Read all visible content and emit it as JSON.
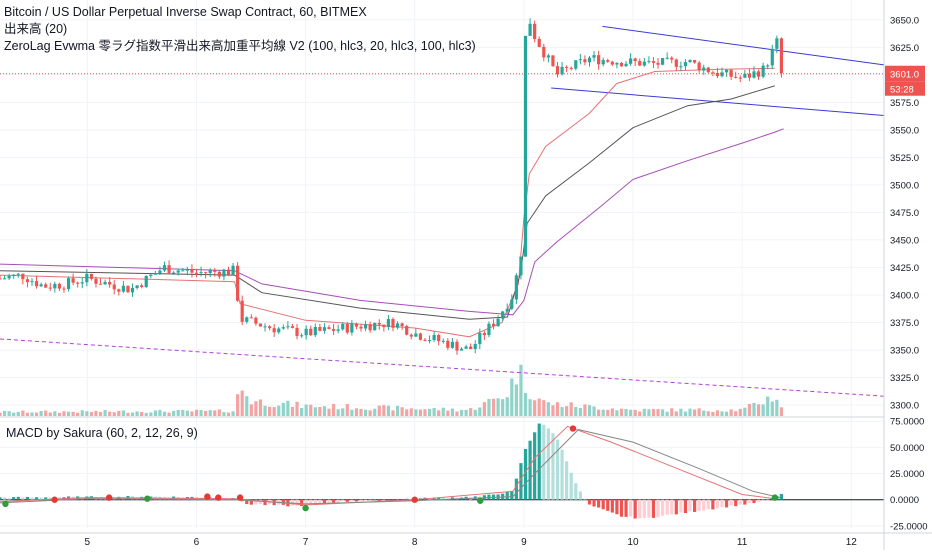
{
  "header": {
    "symbol_line": "Bitcoin / US Dollar Perpetual Inverse Swap Contract, 60, BITMEX",
    "volume_line": "出来高 (20)",
    "indicator_line": "ZeroLag Evwma 零ラグ指数平滑出来高加重平均線 V2 (100, hlc3, 20, hlc3, 100, hlc3)"
  },
  "macd_title": "MACD by Sakura (60, 2, 12, 26, 9)",
  "colors": {
    "up": "#26a69a",
    "down": "#ef5350",
    "vol_up": "#8fd3c9",
    "vol_down": "#f4a3a3",
    "channel": "#3b3bd6",
    "dashed_line": "#b142d8",
    "ma_fast": "#e57373",
    "ma_mid": "#555555",
    "ma_slow": "#a54fb8",
    "price_label_bg": "#ef5350",
    "grid": "#f0f3fa"
  },
  "chart_data": [
    {
      "type": "candlestick",
      "title": "Bitcoin / US Dollar Perpetual Inverse Swap Contract, 60, BITMEX",
      "x_tick_labels": [
        "5",
        "6",
        "7",
        "8",
        "9",
        "10",
        "11",
        "12"
      ],
      "y_tick_labels": [
        "3650.0",
        "3625.0",
        "3600.0",
        "3575.0",
        "3550.0",
        "3525.0",
        "3500.0",
        "3475.0",
        "3450.0",
        "3425.0",
        "3400.0",
        "3375.0",
        "3350.0",
        "3325.0",
        "3300.0"
      ],
      "ylim": [
        3290,
        3668
      ],
      "x_range_days": [
        4.2,
        12.3
      ],
      "last_price_label": "3601.0",
      "countdown_label": "53:28",
      "key_price_path": [
        {
          "day": 4.2,
          "price": 3415
        },
        {
          "day": 4.4,
          "price": 3418
        },
        {
          "day": 4.6,
          "price": 3408
        },
        {
          "day": 4.8,
          "price": 3410
        },
        {
          "day": 5.0,
          "price": 3415
        },
        {
          "day": 5.4,
          "price": 3405
        },
        {
          "day": 5.7,
          "price": 3425
        },
        {
          "day": 6.0,
          "price": 3420
        },
        {
          "day": 6.35,
          "price": 3422
        },
        {
          "day": 6.4,
          "price": 3378
        },
        {
          "day": 6.7,
          "price": 3370
        },
        {
          "day": 7.0,
          "price": 3365
        },
        {
          "day": 7.5,
          "price": 3372
        },
        {
          "day": 7.8,
          "price": 3375
        },
        {
          "day": 8.0,
          "price": 3365
        },
        {
          "day": 8.5,
          "price": 3350
        },
        {
          "day": 8.75,
          "price": 3378
        },
        {
          "day": 8.9,
          "price": 3400
        },
        {
          "day": 8.98,
          "price": 3442
        },
        {
          "day": 9.02,
          "price": 3660
        },
        {
          "day": 9.1,
          "price": 3635
        },
        {
          "day": 9.3,
          "price": 3600
        },
        {
          "day": 9.6,
          "price": 3615
        },
        {
          "day": 9.9,
          "price": 3612
        },
        {
          "day": 10.2,
          "price": 3610
        },
        {
          "day": 10.5,
          "price": 3612
        },
        {
          "day": 10.75,
          "price": 3602
        },
        {
          "day": 11.0,
          "price": 3597
        },
        {
          "day": 11.2,
          "price": 3605
        },
        {
          "day": 11.32,
          "price": 3630
        },
        {
          "day": 11.36,
          "price": 3601
        }
      ],
      "moving_averages": [
        {
          "key": "ma_fast",
          "points": [
            {
              "day": 4.2,
              "price": 3418
            },
            {
              "day": 6.35,
              "price": 3412
            },
            {
              "day": 6.4,
              "price": 3392
            },
            {
              "day": 7.0,
              "price": 3377
            },
            {
              "day": 8.0,
              "price": 3370
            },
            {
              "day": 8.5,
              "price": 3362
            },
            {
              "day": 8.8,
              "price": 3375
            },
            {
              "day": 8.95,
              "price": 3410
            },
            {
              "day": 9.0,
              "price": 3470
            },
            {
              "day": 9.05,
              "price": 3510
            },
            {
              "day": 9.2,
              "price": 3535
            },
            {
              "day": 9.6,
              "price": 3565
            },
            {
              "day": 9.85,
              "price": 3592
            },
            {
              "day": 10.2,
              "price": 3603
            },
            {
              "day": 10.8,
              "price": 3605
            },
            {
              "day": 11.3,
              "price": 3606
            }
          ]
        },
        {
          "key": "ma_mid",
          "points": [
            {
              "day": 4.2,
              "price": 3422
            },
            {
              "day": 6.35,
              "price": 3418
            },
            {
              "day": 6.6,
              "price": 3402
            },
            {
              "day": 7.5,
              "price": 3388
            },
            {
              "day": 8.5,
              "price": 3378
            },
            {
              "day": 8.85,
              "price": 3380
            },
            {
              "day": 8.97,
              "price": 3420
            },
            {
              "day": 9.03,
              "price": 3465
            },
            {
              "day": 9.2,
              "price": 3490
            },
            {
              "day": 9.6,
              "price": 3520
            },
            {
              "day": 10.0,
              "price": 3552
            },
            {
              "day": 10.5,
              "price": 3572
            },
            {
              "day": 10.9,
              "price": 3578
            },
            {
              "day": 11.3,
              "price": 3590
            }
          ]
        },
        {
          "key": "ma_slow",
          "points": [
            {
              "day": 4.2,
              "price": 3428
            },
            {
              "day": 6.35,
              "price": 3422
            },
            {
              "day": 6.6,
              "price": 3410
            },
            {
              "day": 7.5,
              "price": 3395
            },
            {
              "day": 8.5,
              "price": 3385
            },
            {
              "day": 8.9,
              "price": 3382
            },
            {
              "day": 9.0,
              "price": 3395
            },
            {
              "day": 9.1,
              "price": 3430
            },
            {
              "day": 9.3,
              "price": 3448
            },
            {
              "day": 9.7,
              "price": 3480
            },
            {
              "day": 10.0,
              "price": 3505
            },
            {
              "day": 10.5,
              "price": 3522
            },
            {
              "day": 11.0,
              "price": 3538
            },
            {
              "day": 11.3,
              "price": 3548
            },
            {
              "day": 11.38,
              "price": 3551
            }
          ]
        }
      ],
      "trend_lines": [
        {
          "key": "channel_top",
          "from": {
            "day": 9.72,
            "price": 3644
          },
          "to": {
            "day": 12.3,
            "price": 3609
          }
        },
        {
          "key": "channel_bottom",
          "from": {
            "day": 9.25,
            "price": 3588
          },
          "to": {
            "day": 12.3,
            "price": 3563
          }
        },
        {
          "key": "dashed_support",
          "from": {
            "day": 4.2,
            "price": 3360
          },
          "to": {
            "day": 12.3,
            "price": 3308
          }
        }
      ]
    },
    {
      "type": "bar",
      "title": "出来高 (20)",
      "series": [
        {
          "name": "出来高 (20)",
          "values": "relative bar heights per candle"
        }
      ],
      "volume_profile": [
        {
          "day": 4.2,
          "rel": 0.08
        },
        {
          "day": 6.35,
          "rel": 0.1
        },
        {
          "day": 6.4,
          "rel": 0.6
        },
        {
          "day": 6.5,
          "rel": 0.3
        },
        {
          "day": 7.0,
          "rel": 0.2
        },
        {
          "day": 8.5,
          "rel": 0.12
        },
        {
          "day": 8.7,
          "rel": 0.3
        },
        {
          "day": 8.85,
          "rel": 0.45
        },
        {
          "day": 8.95,
          "rel": 0.95
        },
        {
          "day": 9.02,
          "rel": 0.55
        },
        {
          "day": 9.2,
          "rel": 0.25
        },
        {
          "day": 10.0,
          "rel": 0.12
        },
        {
          "day": 11.0,
          "rel": 0.12
        },
        {
          "day": 11.3,
          "rel": 0.4
        },
        {
          "day": 11.36,
          "rel": 0.2
        }
      ]
    },
    {
      "type": "bar",
      "title": "MACD by Sakura (60, 2, 12, 26, 9)",
      "y_tick_labels": [
        "75.0000",
        "50.0000",
        "25.0000",
        "0.0000",
        "-25.0000"
      ],
      "ylim": [
        -27,
        79
      ],
      "histogram_path": [
        {
          "day": 4.2,
          "value": 2
        },
        {
          "day": 5.5,
          "value": 3
        },
        {
          "day": 6.35,
          "value": 2
        },
        {
          "day": 6.45,
          "value": -4
        },
        {
          "day": 6.9,
          "value": -6
        },
        {
          "day": 7.3,
          "value": -2
        },
        {
          "day": 8.0,
          "value": 1
        },
        {
          "day": 8.6,
          "value": 3
        },
        {
          "day": 8.9,
          "value": 8
        },
        {
          "day": 9.0,
          "value": 45
        },
        {
          "day": 9.15,
          "value": 75
        },
        {
          "day": 9.3,
          "value": 60
        },
        {
          "day": 9.5,
          "value": 10
        },
        {
          "day": 9.6,
          "value": -5
        },
        {
          "day": 9.9,
          "value": -16
        },
        {
          "day": 10.1,
          "value": -18
        },
        {
          "day": 10.5,
          "value": -12
        },
        {
          "day": 10.9,
          "value": -6
        },
        {
          "day": 11.25,
          "value": -1
        },
        {
          "day": 11.35,
          "value": 6
        },
        {
          "day": 11.4,
          "value": 3
        }
      ],
      "lines": [
        {
          "key": "ma_fast",
          "points": [
            {
              "day": 4.2,
              "value": -2
            },
            {
              "day": 5.0,
              "value": 2
            },
            {
              "day": 6.35,
              "value": 1
            },
            {
              "day": 7.0,
              "value": -5
            },
            {
              "day": 8.0,
              "value": 0
            },
            {
              "day": 8.9,
              "value": 8
            },
            {
              "day": 9.1,
              "value": 40
            },
            {
              "day": 9.4,
              "value": 70
            },
            {
              "day": 9.8,
              "value": 55
            },
            {
              "day": 10.4,
              "value": 30
            },
            {
              "day": 11.0,
              "value": 5
            },
            {
              "day": 11.3,
              "value": 1
            }
          ]
        },
        {
          "key": "ma_mid",
          "points": [
            {
              "day": 4.2,
              "value": -3
            },
            {
              "day": 5.0,
              "value": 1
            },
            {
              "day": 6.35,
              "value": 0
            },
            {
              "day": 7.0,
              "value": -4
            },
            {
              "day": 8.0,
              "value": -1
            },
            {
              "day": 8.9,
              "value": 3
            },
            {
              "day": 9.1,
              "value": 25
            },
            {
              "day": 9.5,
              "value": 67
            },
            {
              "day": 10.0,
              "value": 55
            },
            {
              "day": 10.6,
              "value": 30
            },
            {
              "day": 11.1,
              "value": 8
            },
            {
              "day": 11.35,
              "value": 2
            }
          ]
        }
      ],
      "crossover_markers": [
        {
          "day": 4.25,
          "value": -4,
          "kind": "up"
        },
        {
          "day": 4.7,
          "value": 0,
          "kind": "down"
        },
        {
          "day": 5.2,
          "value": 2,
          "kind": "down"
        },
        {
          "day": 5.55,
          "value": 1,
          "kind": "up"
        },
        {
          "day": 6.1,
          "value": 3,
          "kind": "down"
        },
        {
          "day": 6.2,
          "value": 2,
          "kind": "down"
        },
        {
          "day": 6.4,
          "value": 2,
          "kind": "down"
        },
        {
          "day": 7.0,
          "value": -8,
          "kind": "up"
        },
        {
          "day": 8.0,
          "value": 0,
          "kind": "down"
        },
        {
          "day": 8.6,
          "value": -1,
          "kind": "up"
        },
        {
          "day": 9.45,
          "value": 68,
          "kind": "down"
        },
        {
          "day": 11.3,
          "value": 2,
          "kind": "up"
        }
      ]
    }
  ]
}
